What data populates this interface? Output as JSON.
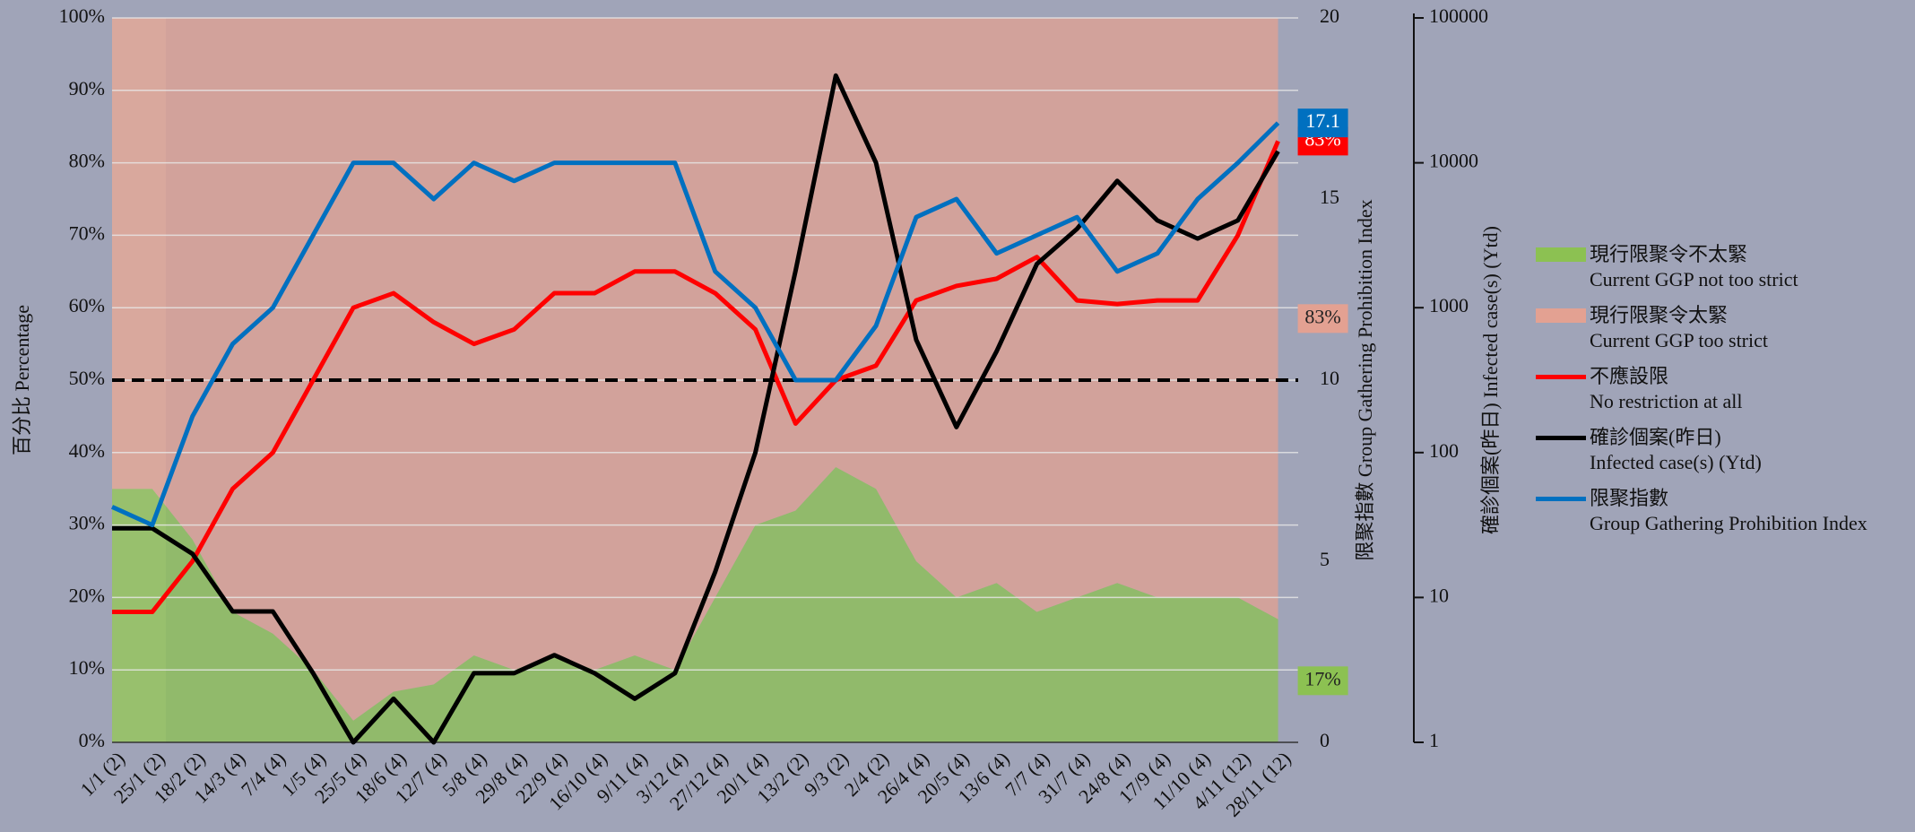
{
  "chart_data": {
    "type": "combo",
    "y_label": "百分比 Percentage",
    "y2_label": "限聚指數 Group Gathering Prohibition Index",
    "y3_label": "確診個案(昨日) Infected case(s) (Ytd)",
    "categories": [
      "1/1 (2)",
      "25/1 (2)",
      "18/2 (2)",
      "14/3 (4)",
      "7/4 (4)",
      "1/5 (4)",
      "25/5 (4)",
      "18/6 (4)",
      "12/7 (4)",
      "5/8 (4)",
      "29/8 (4)",
      "22/9 (4)",
      "16/10 (4)",
      "9/11 (4)",
      "3/12 (4)",
      "27/12 (4)",
      "20/1 (4)",
      "13/2 (2)",
      "9/3 (2)",
      "2/4 (2)",
      "26/4 (4)",
      "20/5 (4)",
      "13/6 (4)",
      "7/7 (4)",
      "31/7 (4)",
      "24/8 (4)",
      "17/9 (4)",
      "11/10 (4)",
      "4/11 (12)",
      "28/11 (12)"
    ],
    "series": [
      {
        "name": "現行限聚令不太緊\nCurrent GGP not too strict",
        "kind": "area",
        "stack": true,
        "color": "#8cc152",
        "values": [
          35,
          35,
          28,
          18,
          15,
          10,
          3,
          7,
          8,
          12,
          10,
          12,
          10,
          12,
          10,
          20,
          30,
          32,
          38,
          35,
          25,
          20,
          22,
          18,
          20,
          22,
          20,
          20,
          20,
          17
        ],
        "value_labels": [
          null,
          null,
          null,
          null,
          null,
          null,
          null,
          null,
          null,
          null,
          null,
          null,
          null,
          null,
          null,
          null,
          null,
          null,
          null,
          null,
          null,
          null,
          null,
          null,
          null,
          null,
          null,
          null,
          null,
          "17%"
        ]
      },
      {
        "name": "現行限聚令太緊\nCurrent GGP too strict",
        "kind": "area",
        "stack": true,
        "color": "#e3a192",
        "values": [
          65,
          65,
          72,
          82,
          85,
          90,
          97,
          93,
          92,
          88,
          90,
          88,
          90,
          88,
          90,
          80,
          70,
          68,
          62,
          65,
          75,
          80,
          78,
          82,
          80,
          78,
          80,
          80,
          80,
          83
        ],
        "value_labels": [
          null,
          null,
          null,
          null,
          null,
          null,
          null,
          null,
          null,
          null,
          null,
          null,
          null,
          null,
          null,
          null,
          null,
          null,
          null,
          null,
          null,
          null,
          null,
          null,
          null,
          null,
          null,
          null,
          null,
          "83%"
        ]
      },
      {
        "name": "不應設限\nNo restriction at all",
        "kind": "line",
        "color": "#ff0000",
        "values": [
          18,
          18,
          25,
          35,
          40,
          50,
          60,
          62,
          58,
          55,
          57,
          62,
          62,
          65,
          65,
          62,
          57,
          44,
          50,
          52,
          61,
          63,
          64,
          67,
          61,
          60.5,
          61,
          61,
          70,
          83
        ],
        "value_labels": [
          null,
          null,
          null,
          null,
          null,
          null,
          null,
          null,
          null,
          null,
          null,
          null,
          null,
          null,
          null,
          null,
          null,
          null,
          null,
          null,
          null,
          null,
          null,
          null,
          null,
          null,
          null,
          null,
          null,
          "83%"
        ]
      },
      {
        "name": "確診個案(昨日)\nInfected case(s) (Ytd)",
        "kind": "line",
        "axis": "y3",
        "color": "#000000",
        "values": [
          30,
          30,
          20,
          8,
          8,
          3,
          1,
          2,
          1,
          3,
          3,
          4,
          3,
          2,
          3,
          15,
          100,
          1800,
          40000,
          10000,
          600,
          150,
          500,
          2000,
          3500,
          7500,
          4000,
          3000,
          4000,
          12000
        ]
      },
      {
        "name": "限聚指數\nGroup Gathering Prohibition Index",
        "kind": "line",
        "axis": "y2",
        "color": "#0070c0",
        "values": [
          6.5,
          6,
          9,
          11,
          12,
          14,
          16,
          16,
          15,
          16,
          15.5,
          16,
          16,
          16,
          16,
          13,
          12,
          10,
          10,
          11.5,
          14.5,
          15,
          13.5,
          14,
          14.5,
          13,
          13.5,
          15,
          16,
          17.1
        ],
        "value_labels": [
          null,
          null,
          null,
          null,
          null,
          null,
          null,
          null,
          null,
          null,
          null,
          null,
          null,
          null,
          null,
          null,
          null,
          null,
          null,
          null,
          null,
          null,
          null,
          null,
          null,
          null,
          null,
          null,
          null,
          "17.1"
        ]
      }
    ],
    "reference_line": 50,
    "ylim": [
      0,
      100
    ],
    "yticks": [
      {
        "value": 0,
        "label": "0%"
      },
      {
        "value": 10,
        "label": "10%"
      },
      {
        "value": 20,
        "label": "20%"
      },
      {
        "value": 30,
        "label": "30%"
      },
      {
        "value": 40,
        "label": "40%"
      },
      {
        "value": 50,
        "label": "50%"
      },
      {
        "value": 60,
        "label": "60%"
      },
      {
        "value": 70,
        "label": "70%"
      },
      {
        "value": 80,
        "label": "80%"
      },
      {
        "value": 90,
        "label": "90%"
      },
      {
        "value": 100,
        "label": "100%"
      }
    ],
    "y2lim": [
      0,
      20
    ],
    "y2ticks": [
      0,
      5,
      10,
      15,
      20
    ],
    "y3lim": [
      1,
      100000
    ],
    "y3ticks": [
      1,
      10,
      100,
      1000,
      10000,
      100000
    ],
    "y3log": true,
    "grid": true,
    "legend": "right"
  }
}
